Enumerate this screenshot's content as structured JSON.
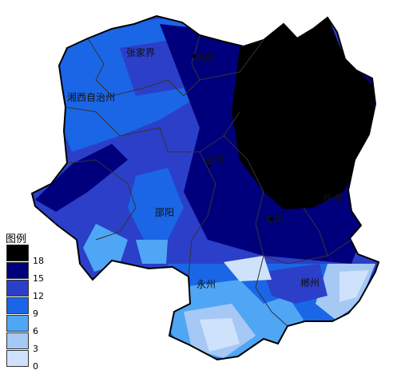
{
  "legend": {
    "title": "图例",
    "classes": [
      {
        "color": "#000000",
        "label": "18"
      },
      {
        "color": "#00007d",
        "label": "15"
      },
      {
        "color": "#2b3fc8",
        "label": "12"
      },
      {
        "color": "#1a66e6",
        "label": "9"
      },
      {
        "color": "#4fa6f5",
        "label": "6"
      },
      {
        "color": "#a6c8f5",
        "label": "3"
      },
      {
        "color": "#cfe2fb",
        "label": "0"
      }
    ],
    "bottom_tick": "0"
  },
  "cities": [
    {
      "key": "zhangjiajie",
      "name": "张家界"
    },
    {
      "key": "changde",
      "name": "常德"
    },
    {
      "key": "xiangxi",
      "name": "湘西自治州"
    },
    {
      "key": "yiyang",
      "name": "益阳"
    },
    {
      "key": "shaoyang",
      "name": "邵阳"
    },
    {
      "key": "hengyang",
      "name": "衡阳"
    },
    {
      "key": "zhuzhou",
      "name": "株洲"
    },
    {
      "key": "yongzhou",
      "name": "永州"
    },
    {
      "key": "chenzhou",
      "name": "郴州"
    }
  ]
}
